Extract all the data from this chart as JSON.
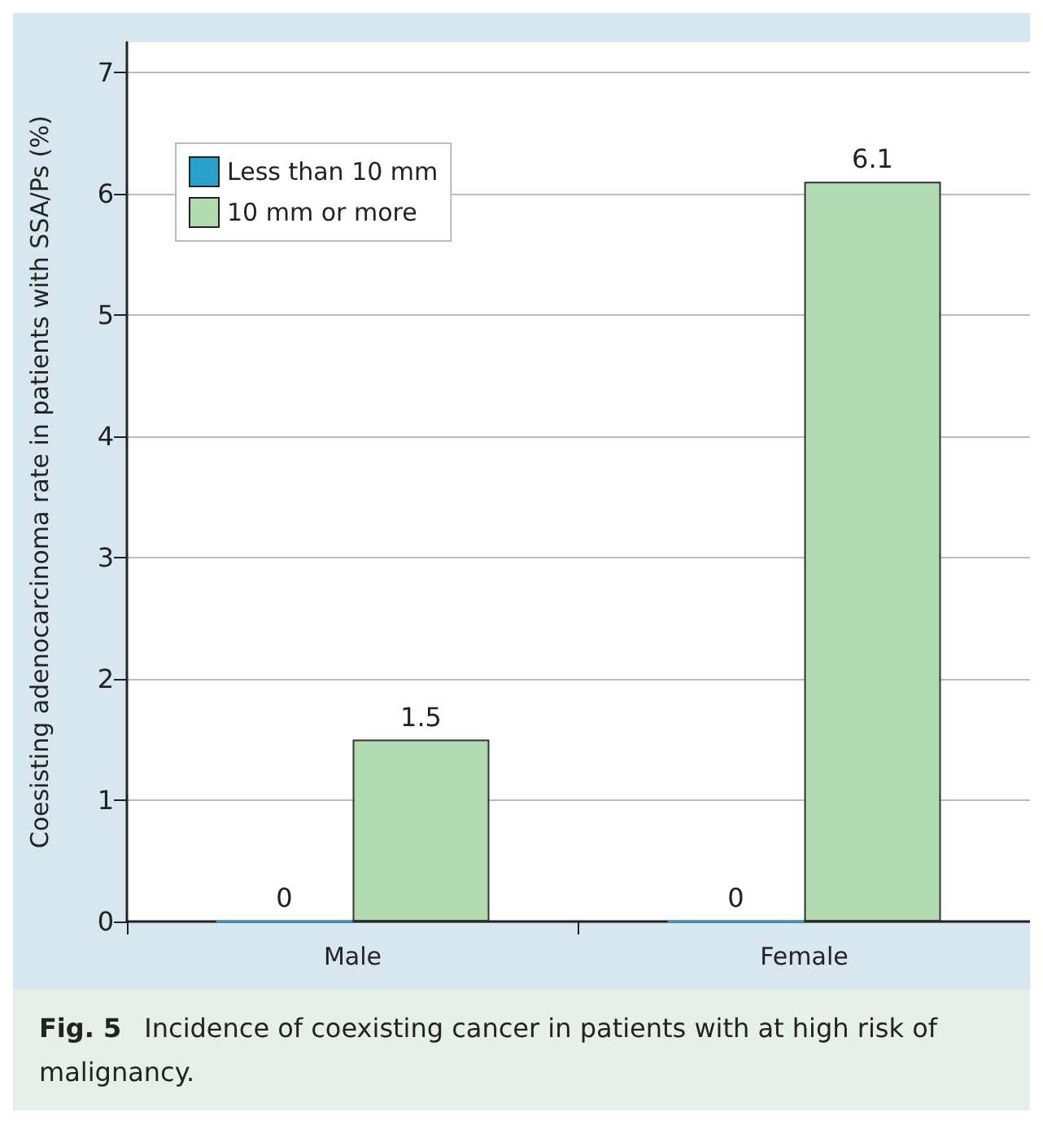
{
  "chart_data": {
    "type": "bar",
    "ylabel": "Coesisting adenocarcinoma rate in patients with SSA/Ps (%)",
    "categories": [
      "Male",
      "Female"
    ],
    "series": [
      {
        "name": "Less than 10 mm",
        "color": "#2aa0cc",
        "values": [
          0,
          0
        ]
      },
      {
        "name": "10 mm or more",
        "color": "#b2dbb2",
        "values": [
          1.5,
          6.1
        ]
      }
    ],
    "ylim": [
      0,
      7.25
    ],
    "yticks": [
      0,
      1,
      2,
      3,
      4,
      5,
      6,
      7
    ],
    "grid": "y",
    "legend": "top left",
    "data_labels": true,
    "annotations": [
      "Fig. 5",
      "Incidence of coexisting cancer in patients with at high risk of malignancy."
    ]
  }
}
